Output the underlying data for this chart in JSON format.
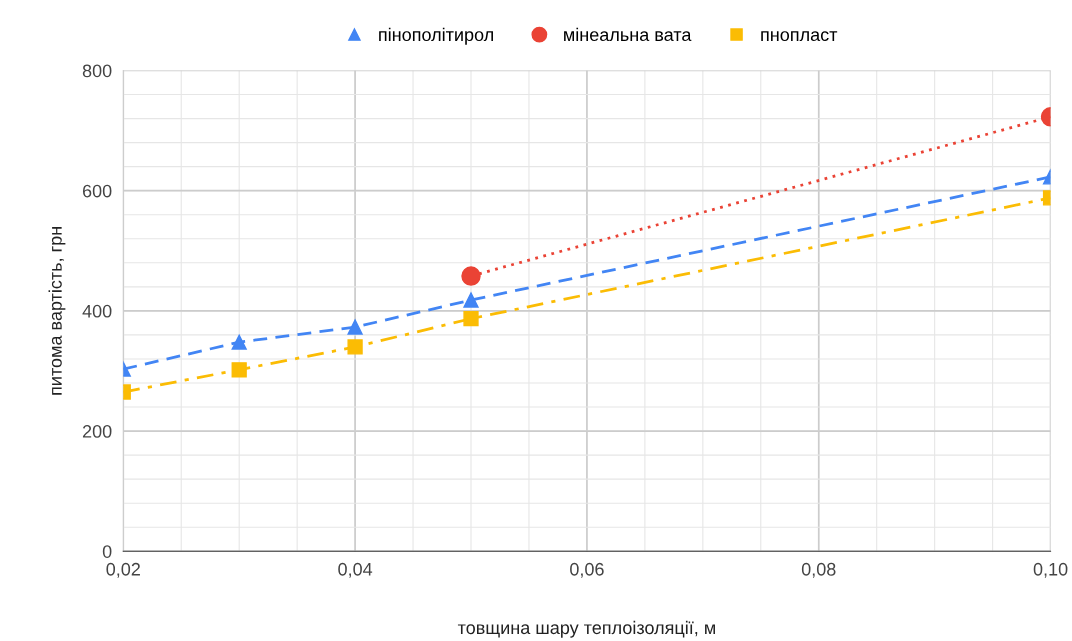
{
  "chart_data": {
    "type": "line",
    "xlabel": "товщина шару теплоізоляції, м",
    "ylabel": "питома вартість, грн",
    "xlim": [
      0.02,
      0.1
    ],
    "xticks": [
      {
        "value": 0.02,
        "label": "0,02"
      },
      {
        "value": 0.04,
        "label": "0,04"
      },
      {
        "value": 0.06,
        "label": "0,06"
      },
      {
        "value": 0.08,
        "label": "0,08"
      },
      {
        "value": 0.1,
        "label": "0,10"
      }
    ],
    "ylim": [
      0,
      800
    ],
    "yticks": [
      0,
      200,
      400,
      600,
      800
    ],
    "grid": true,
    "legend": "top",
    "series": [
      {
        "name": "пінополітирол",
        "color": "#4285f4",
        "marker": "triangle",
        "line_style": "dashed",
        "x": [
          0.02,
          0.03,
          0.04,
          0.05,
          0.1
        ],
        "values": [
          303,
          348,
          373,
          418,
          623
        ]
      },
      {
        "name": "мінеальна вата",
        "color": "#ea4335",
        "marker": "circle",
        "line_style": "dotted",
        "x": [
          0.05,
          0.1
        ],
        "values": [
          458,
          723
        ]
      },
      {
        "name": "пнопласт",
        "color": "#fbbc04",
        "marker": "square",
        "line_style": "dashdot",
        "x": [
          0.02,
          0.03,
          0.04,
          0.05,
          0.1
        ],
        "values": [
          265,
          302,
          340,
          387,
          588
        ]
      }
    ]
  }
}
